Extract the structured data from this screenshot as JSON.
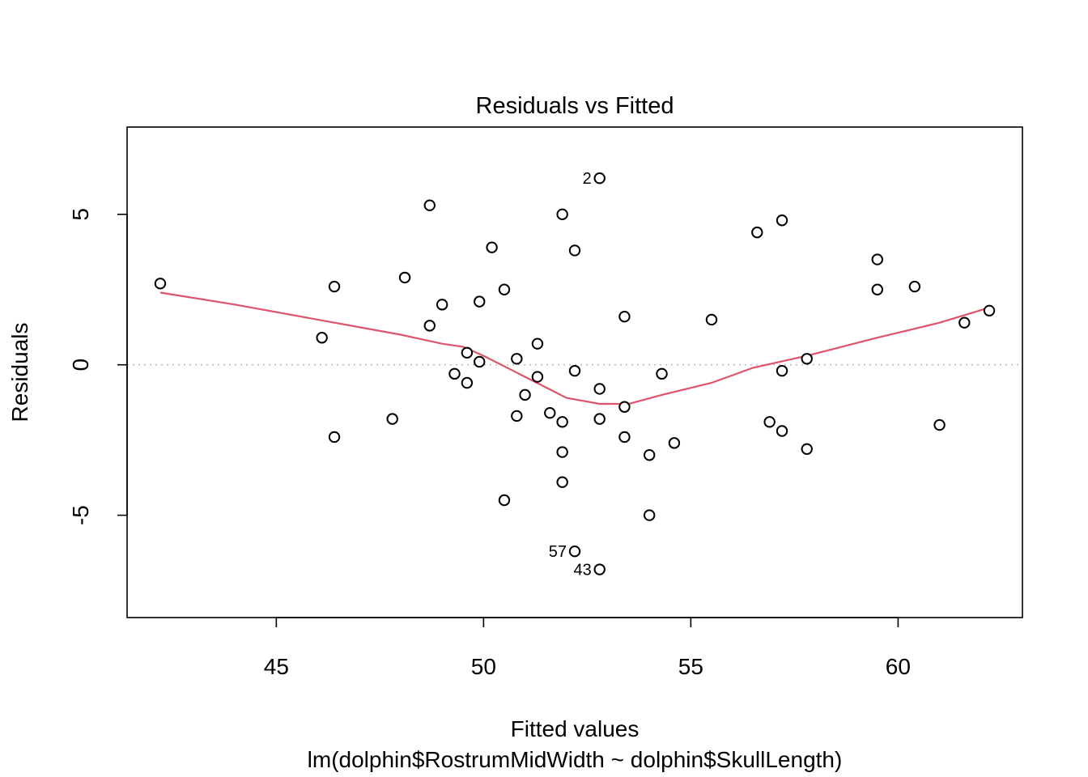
{
  "chart_data": {
    "type": "scatter",
    "title": "Residuals vs Fitted",
    "xlabel": "Fitted values",
    "sublabel": "lm(dolphin$RostrumMidWidth ~ dolphin$SkullLength)",
    "ylabel": "Residuals",
    "xlim": [
      41.4,
      63
    ],
    "ylim": [
      -8.4,
      7.9
    ],
    "x_ticks": [
      45,
      50,
      55,
      60
    ],
    "y_ticks": [
      -5,
      0,
      5
    ],
    "x_tick_labels": [
      "45",
      "50",
      "55",
      "60"
    ],
    "y_tick_labels": [
      "-5",
      "0",
      "5"
    ],
    "grid": false,
    "reference_line_y": 0,
    "smooth_color": "#DF536B",
    "reference_color": "#BDBDBD",
    "points": [
      {
        "x": 42.2,
        "y": 2.7
      },
      {
        "x": 46.1,
        "y": 0.9
      },
      {
        "x": 46.4,
        "y": 2.6
      },
      {
        "x": 46.4,
        "y": -2.4
      },
      {
        "x": 47.8,
        "y": -1.8
      },
      {
        "x": 48.1,
        "y": 2.9
      },
      {
        "x": 48.7,
        "y": 5.3
      },
      {
        "x": 48.7,
        "y": 1.3
      },
      {
        "x": 49.0,
        "y": 2.0
      },
      {
        "x": 49.3,
        "y": -0.3
      },
      {
        "x": 49.6,
        "y": 0.4
      },
      {
        "x": 49.6,
        "y": -0.6
      },
      {
        "x": 49.9,
        "y": 2.1
      },
      {
        "x": 49.9,
        "y": 0.1
      },
      {
        "x": 50.2,
        "y": 3.9
      },
      {
        "x": 50.5,
        "y": 2.5
      },
      {
        "x": 50.5,
        "y": -4.5
      },
      {
        "x": 50.8,
        "y": 0.2
      },
      {
        "x": 50.8,
        "y": -1.7
      },
      {
        "x": 51.0,
        "y": -1.0
      },
      {
        "x": 51.3,
        "y": 0.7
      },
      {
        "x": 51.3,
        "y": -0.4
      },
      {
        "x": 51.6,
        "y": -1.6
      },
      {
        "x": 51.9,
        "y": 5.0
      },
      {
        "x": 51.9,
        "y": -1.9
      },
      {
        "x": 51.9,
        "y": -2.9
      },
      {
        "x": 51.9,
        "y": -3.9
      },
      {
        "x": 52.2,
        "y": 3.8
      },
      {
        "x": 52.2,
        "y": -0.2
      },
      {
        "x": 52.2,
        "y": -6.2
      },
      {
        "x": 52.8,
        "y": 6.2
      },
      {
        "x": 52.8,
        "y": -0.8
      },
      {
        "x": 52.8,
        "y": -1.8
      },
      {
        "x": 52.8,
        "y": -6.8
      },
      {
        "x": 53.4,
        "y": 1.6
      },
      {
        "x": 53.4,
        "y": -1.4
      },
      {
        "x": 53.4,
        "y": -2.4
      },
      {
        "x": 54.0,
        "y": -3.0
      },
      {
        "x": 54.0,
        "y": -5.0
      },
      {
        "x": 54.3,
        "y": -0.3
      },
      {
        "x": 54.6,
        "y": -2.6
      },
      {
        "x": 55.5,
        "y": 1.5
      },
      {
        "x": 56.6,
        "y": 4.4
      },
      {
        "x": 56.9,
        "y": -1.9
      },
      {
        "x": 57.2,
        "y": 4.8
      },
      {
        "x": 57.2,
        "y": -0.2
      },
      {
        "x": 57.2,
        "y": -2.2
      },
      {
        "x": 57.8,
        "y": 0.2
      },
      {
        "x": 57.8,
        "y": -2.8
      },
      {
        "x": 59.5,
        "y": 3.5
      },
      {
        "x": 59.5,
        "y": 2.5
      },
      {
        "x": 60.4,
        "y": 2.6
      },
      {
        "x": 61.0,
        "y": -2.0
      },
      {
        "x": 61.6,
        "y": 1.4
      },
      {
        "x": 62.2,
        "y": 1.8
      }
    ],
    "labeled_points": [
      {
        "label": "2",
        "x": 52.8,
        "y": 6.2
      },
      {
        "label": "57",
        "x": 52.2,
        "y": -6.2
      },
      {
        "label": "43",
        "x": 52.8,
        "y": -6.8
      }
    ],
    "smooth_line": [
      {
        "x": 42.2,
        "y": 2.4
      },
      {
        "x": 44.0,
        "y": 2.0
      },
      {
        "x": 46.0,
        "y": 1.5
      },
      {
        "x": 48.0,
        "y": 1.0
      },
      {
        "x": 49.0,
        "y": 0.7
      },
      {
        "x": 49.5,
        "y": 0.6
      },
      {
        "x": 50.0,
        "y": 0.3
      },
      {
        "x": 51.0,
        "y": -0.4
      },
      {
        "x": 52.0,
        "y": -1.1
      },
      {
        "x": 52.8,
        "y": -1.3
      },
      {
        "x": 53.5,
        "y": -1.3
      },
      {
        "x": 54.3,
        "y": -1.0
      },
      {
        "x": 55.5,
        "y": -0.6
      },
      {
        "x": 56.5,
        "y": -0.1
      },
      {
        "x": 57.8,
        "y": 0.3
      },
      {
        "x": 59.5,
        "y": 0.9
      },
      {
        "x": 61.0,
        "y": 1.4
      },
      {
        "x": 62.2,
        "y": 1.9
      }
    ]
  }
}
